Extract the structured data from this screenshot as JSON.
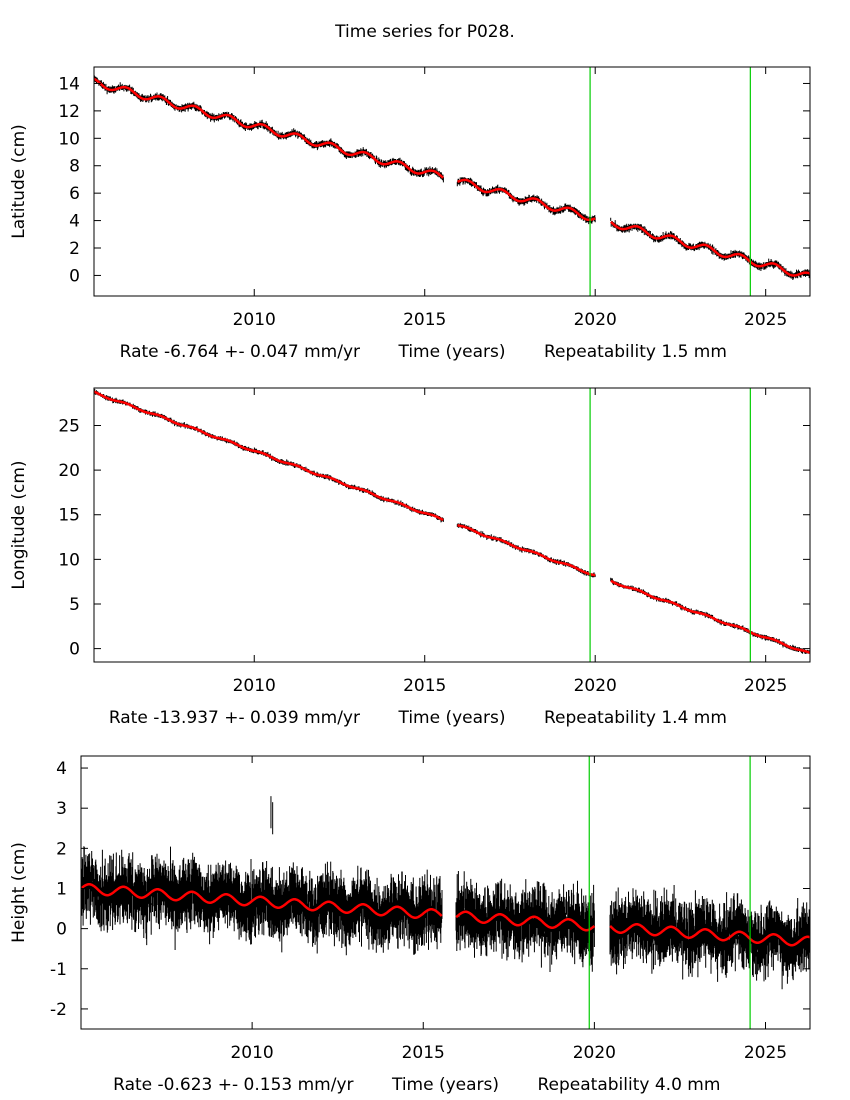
{
  "title": "Time series for P028.",
  "colors": {
    "data": "#000000",
    "fit": "#ff0000",
    "event": "#00cc00",
    "axis": "#000000"
  },
  "chart_data": [
    {
      "type": "line",
      "id": "latitude",
      "title": "",
      "ylabel": "Latitude (cm)",
      "xlabel": "Time (years)",
      "rate_text": "Rate -6.764 +- 0.047 mm/yr",
      "repeatability_text": "Repeatability 1.5 mm",
      "xlim": [
        2005.3,
        2026.3
      ],
      "ylim": [
        -1.5,
        15.2
      ],
      "xticks": [
        2010,
        2015,
        2020,
        2025
      ],
      "yticks": [
        0,
        2,
        4,
        6,
        8,
        10,
        12,
        14
      ],
      "event_lines_x": [
        2019.85,
        2024.55
      ],
      "gaps": [
        [
          2015.55,
          2015.95
        ],
        [
          2020.0,
          2020.45
        ]
      ],
      "start_value": 14.1,
      "rate_cm_per_yr": -0.6764,
      "seasonal_amp": 0.25,
      "noise": 0.15,
      "series": [
        {
          "name": "Observations",
          "style": "black error bars"
        },
        {
          "name": "Model fit",
          "style": "red line",
          "x": [
            2005.3,
            2026.3
          ],
          "y": [
            14.1,
            -0.1
          ]
        }
      ]
    },
    {
      "type": "line",
      "id": "longitude",
      "title": "",
      "ylabel": "Longitude (cm)",
      "xlabel": "Time (years)",
      "rate_text": "Rate -13.937 +- 0.039 mm/yr",
      "repeatability_text": "Repeatability 1.4 mm",
      "xlim": [
        2005.3,
        2026.3
      ],
      "ylim": [
        -1.5,
        29.2
      ],
      "xticks": [
        2010,
        2015,
        2020,
        2025
      ],
      "yticks": [
        0,
        5,
        10,
        15,
        20,
        25
      ],
      "event_lines_x": [
        2019.85,
        2024.55
      ],
      "gaps": [
        [
          2015.55,
          2015.95
        ],
        [
          2020.0,
          2020.45
        ]
      ],
      "start_value": 28.7,
      "rate_cm_per_yr": -1.3937,
      "seasonal_amp": 0.1,
      "noise": 0.15,
      "series": [
        {
          "name": "Observations",
          "style": "black error bars"
        },
        {
          "name": "Model fit",
          "style": "red line",
          "x": [
            2005.3,
            2026.3
          ],
          "y": [
            28.7,
            -0.6
          ]
        }
      ]
    },
    {
      "type": "line",
      "id": "height",
      "title": "",
      "ylabel": "Height (cm)",
      "xlabel": "Time (years)",
      "rate_text": "Rate -0.623 +- 0.153 mm/yr",
      "repeatability_text": "Repeatability 4.0 mm",
      "xlim": [
        2005.0,
        2026.3
      ],
      "ylim": [
        -2.5,
        4.3
      ],
      "xticks": [
        2010,
        2015,
        2020,
        2025
      ],
      "yticks": [
        -2,
        -1,
        0,
        1,
        2,
        3,
        4
      ],
      "event_lines_x": [
        2019.85,
        2024.55
      ],
      "gaps": [
        [
          2015.55,
          2015.95
        ],
        [
          2020.0,
          2020.45
        ]
      ],
      "start_value": 1.0,
      "rate_cm_per_yr": -0.0623,
      "seasonal_amp": 0.12,
      "noise": 0.45,
      "outliers": [
        [
          2010.55,
          2.9
        ],
        [
          2010.6,
          2.75
        ]
      ],
      "series": [
        {
          "name": "Observations",
          "style": "black error bars"
        },
        {
          "name": "Model fit",
          "style": "red line",
          "x": [
            2005.0,
            2026.3
          ],
          "y": [
            1.0,
            0.0
          ]
        }
      ]
    }
  ]
}
